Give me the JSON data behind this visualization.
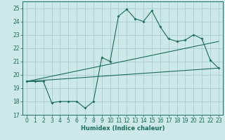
{
  "xlabel": "Humidex (Indice chaleur)",
  "xlim": [
    -0.5,
    23.5
  ],
  "ylim": [
    17,
    25.5
  ],
  "yticks": [
    17,
    18,
    19,
    20,
    21,
    22,
    23,
    24,
    25
  ],
  "xticks": [
    0,
    1,
    2,
    3,
    4,
    5,
    6,
    7,
    8,
    9,
    10,
    11,
    12,
    13,
    14,
    15,
    16,
    17,
    18,
    19,
    20,
    21,
    22,
    23
  ],
  "bg_color": "#cce8e8",
  "line_color": "#1a6b5a",
  "grid_color": "#a0c8c8",
  "series1_x": [
    0,
    1,
    2,
    3,
    4,
    5,
    6,
    7,
    8,
    9,
    10,
    11,
    12,
    13,
    14,
    15,
    16,
    17,
    18,
    19,
    20,
    21,
    22,
    23
  ],
  "series1_y": [
    19.5,
    19.5,
    19.5,
    17.9,
    18.0,
    18.0,
    18.0,
    17.5,
    18.0,
    21.3,
    21.0,
    24.4,
    24.9,
    24.2,
    24.0,
    24.8,
    23.6,
    22.7,
    22.5,
    22.6,
    23.0,
    22.7,
    21.1,
    20.5
  ],
  "series2_x": [
    0,
    23
  ],
  "series2_y": [
    19.5,
    20.5
  ],
  "series3_x": [
    0,
    23
  ],
  "series3_y": [
    19.5,
    22.5
  ]
}
